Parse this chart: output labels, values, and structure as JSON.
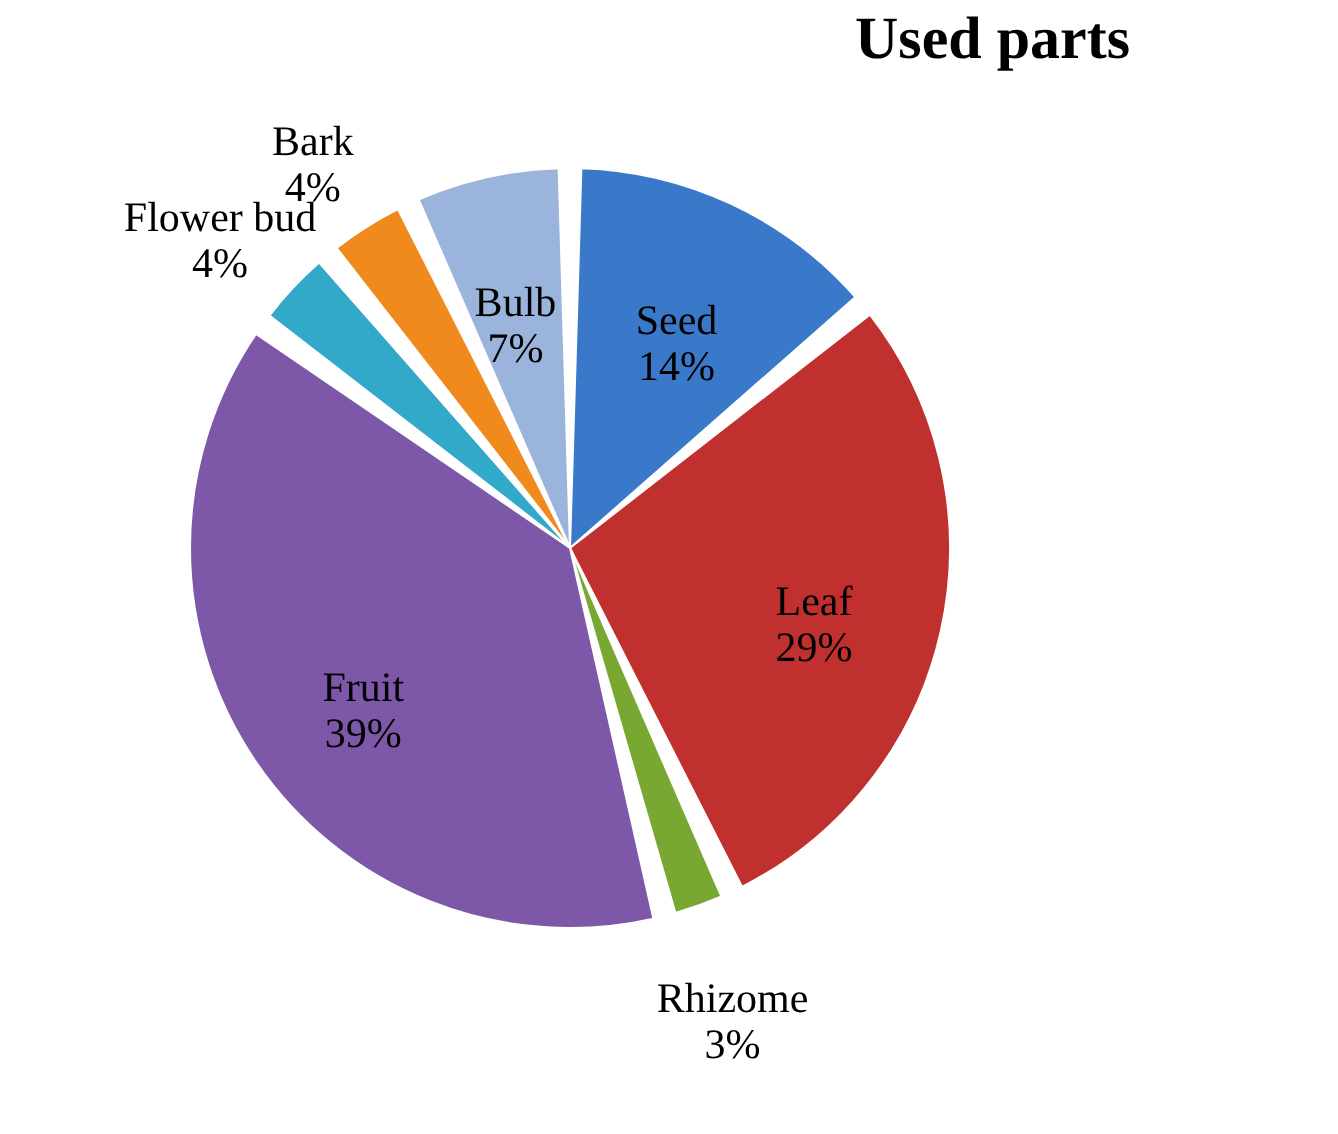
{
  "chart_data": {
    "type": "pie",
    "title": "Used parts",
    "categories": [
      "Seed",
      "Leaf",
      "Rhizome",
      "Fruit",
      "Flower bud",
      "Bark",
      "Bulb"
    ],
    "values": [
      14,
      29,
      3,
      39,
      4,
      4,
      7
    ],
    "value_labels": [
      "14%",
      "29%",
      "3%",
      "39%",
      "4%",
      "4%",
      "7%"
    ],
    "colors": [
      "#3a78c9",
      "#c0302e",
      "#78a832",
      "#7e58a8",
      "#32a9c9",
      "#f08a1c",
      "#9ab4dc"
    ],
    "legend": false
  }
}
